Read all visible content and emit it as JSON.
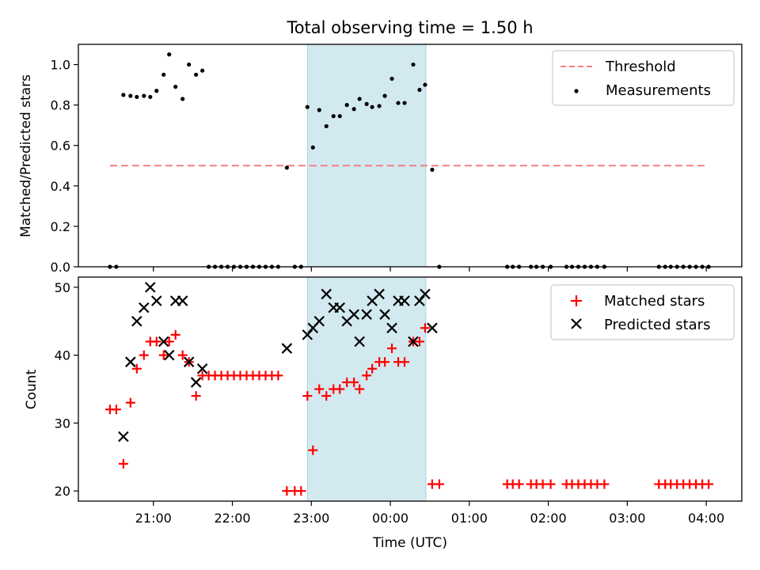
{
  "chart_data": [
    {
      "type": "scatter",
      "title": "Total observing time = 1.50 h",
      "ylabel": "Matched/Predicted stars",
      "xlabel": "",
      "ylim": [
        0,
        1.1
      ],
      "yticks": [
        0.0,
        0.2,
        0.4,
        0.6,
        0.8,
        1.0
      ],
      "ytick_labels": [
        "0.0",
        "0.2",
        "0.4",
        "0.6",
        "0.8",
        "1.0"
      ],
      "x_unit": "hours since 20:00 UTC (axis labels are times)",
      "xlim": [
        0.05,
        8.45
      ],
      "shaded_span": [
        2.95,
        4.45
      ],
      "shade_color": "#d3e9f0",
      "legend": {
        "placement": "top-right",
        "entries": [
          "Threshold",
          "Measurements"
        ]
      },
      "series": [
        {
          "name": "Threshold",
          "style": "dashed-line",
          "color": "#f08080",
          "x": [
            0.45,
            8.0
          ],
          "y": [
            0.5,
            0.5
          ]
        },
        {
          "name": "Measurements",
          "style": "dot",
          "color": "#000000",
          "x": [
            0.45,
            0.53,
            0.62,
            0.71,
            0.79,
            0.88,
            0.96,
            1.04,
            1.13,
            1.2,
            1.28,
            1.37,
            1.45,
            1.54,
            1.62,
            1.7,
            1.78,
            1.86,
            1.94,
            2.02,
            2.1,
            2.18,
            2.26,
            2.34,
            2.42,
            2.5,
            2.58,
            2.69,
            2.79,
            2.87,
            2.95,
            3.02,
            3.1,
            3.19,
            3.28,
            3.36,
            3.45,
            3.54,
            3.61,
            3.7,
            3.77,
            3.86,
            3.93,
            4.02,
            4.1,
            4.18,
            4.29,
            4.37,
            4.44,
            4.53,
            4.62,
            5.48,
            5.55,
            5.63,
            5.78,
            5.85,
            5.93,
            6.03,
            6.23,
            6.3,
            6.38,
            6.46,
            6.54,
            6.62,
            6.71,
            7.4,
            7.48,
            7.55,
            7.63,
            7.71,
            7.79,
            7.87,
            7.95,
            8.03
          ],
          "y": [
            0.0,
            0.0,
            0.85,
            0.845,
            0.84,
            0.845,
            0.84,
            0.87,
            0.95,
            1.05,
            0.89,
            0.83,
            1.0,
            0.95,
            0.97,
            0.0,
            0.0,
            0.0,
            0.0,
            0.0,
            0.0,
            0.0,
            0.0,
            0.0,
            0.0,
            0.0,
            0.0,
            0.49,
            0.0,
            0.0,
            0.79,
            0.59,
            0.775,
            0.695,
            0.745,
            0.745,
            0.8,
            0.78,
            0.83,
            0.805,
            0.79,
            0.795,
            0.845,
            0.93,
            0.81,
            0.81,
            1.0,
            0.875,
            0.9,
            0.48,
            0.0,
            0.0,
            0.0,
            0.0,
            0.0,
            0.0,
            0.0,
            0.0,
            0.0,
            0.0,
            0.0,
            0.0,
            0.0,
            0.0,
            0.0,
            0.0,
            0.0,
            0.0,
            0.0,
            0.0,
            0.0,
            0.0,
            0.0,
            0.0
          ]
        }
      ]
    },
    {
      "type": "scatter",
      "title": "",
      "ylabel": "Count",
      "xlabel": "Time (UTC)",
      "ylim": [
        18.5,
        51.5
      ],
      "yticks": [
        20,
        30,
        40,
        50
      ],
      "ytick_labels": [
        "20",
        "30",
        "40",
        "50"
      ],
      "x_unit": "hours since 20:00 UTC (axis labels are times)",
      "xlim": [
        0.05,
        8.45
      ],
      "xticks": [
        1,
        2,
        3,
        4,
        5,
        6,
        7,
        8
      ],
      "xtick_labels": [
        "21:00",
        "22:00",
        "23:00",
        "00:00",
        "01:00",
        "02:00",
        "03:00",
        "04:00"
      ],
      "shaded_span": [
        2.95,
        4.45
      ],
      "shade_color": "#d3e9f0",
      "legend": {
        "placement": "top-right",
        "entries": [
          "Matched stars",
          "Predicted stars"
        ]
      },
      "series": [
        {
          "name": "Matched stars",
          "marker": "plus",
          "color": "#ff0000",
          "x": [
            0.45,
            0.53,
            0.62,
            0.71,
            0.79,
            0.88,
            0.96,
            1.04,
            1.13,
            1.2,
            1.28,
            1.37,
            1.45,
            1.54,
            1.62,
            1.7,
            1.78,
            1.86,
            1.94,
            2.02,
            2.1,
            2.18,
            2.26,
            2.34,
            2.42,
            2.5,
            2.58,
            2.69,
            2.79,
            2.87,
            2.95,
            3.02,
            3.1,
            3.19,
            3.28,
            3.36,
            3.45,
            3.54,
            3.61,
            3.7,
            3.77,
            3.86,
            3.93,
            4.02,
            4.1,
            4.18,
            4.29,
            4.37,
            4.44,
            4.53,
            4.62,
            5.48,
            5.55,
            5.63,
            5.78,
            5.85,
            5.93,
            6.03,
            6.23,
            6.3,
            6.38,
            6.46,
            6.54,
            6.62,
            6.71,
            7.4,
            7.48,
            7.55,
            7.63,
            7.71,
            7.79,
            7.87,
            7.95,
            8.03
          ],
          "y": [
            32,
            32,
            24,
            33,
            38,
            40,
            42,
            42,
            40,
            42,
            43,
            40,
            39,
            34,
            37,
            37,
            37,
            37,
            37,
            37,
            37,
            37,
            37,
            37,
            37,
            37,
            37,
            20,
            20,
            20,
            34,
            26,
            35,
            34,
            35,
            35,
            36,
            36,
            35,
            37,
            38,
            39,
            39,
            41,
            39,
            39,
            42,
            42,
            44,
            21,
            21,
            21,
            21,
            21,
            21,
            21,
            21,
            21,
            21,
            21,
            21,
            21,
            21,
            21,
            21,
            21,
            21,
            21,
            21,
            21,
            21,
            21,
            21,
            21
          ]
        },
        {
          "name": "Predicted stars",
          "marker": "x",
          "color": "#000000",
          "x": [
            0.62,
            0.71,
            0.79,
            0.88,
            0.96,
            1.04,
            1.13,
            1.2,
            1.28,
            1.37,
            1.45,
            1.54,
            1.62,
            2.69,
            2.95,
            3.02,
            3.1,
            3.19,
            3.28,
            3.36,
            3.45,
            3.54,
            3.61,
            3.7,
            3.77,
            3.86,
            3.93,
            4.02,
            4.1,
            4.18,
            4.29,
            4.37,
            4.44,
            4.53
          ],
          "y": [
            28,
            39,
            45,
            47,
            50,
            48,
            42,
            40,
            48,
            48,
            39,
            36,
            38,
            41,
            43,
            44,
            45,
            49,
            47,
            47,
            45,
            46,
            42,
            46,
            48,
            49,
            46,
            44,
            48,
            48,
            42,
            48,
            49,
            44
          ]
        }
      ]
    }
  ]
}
